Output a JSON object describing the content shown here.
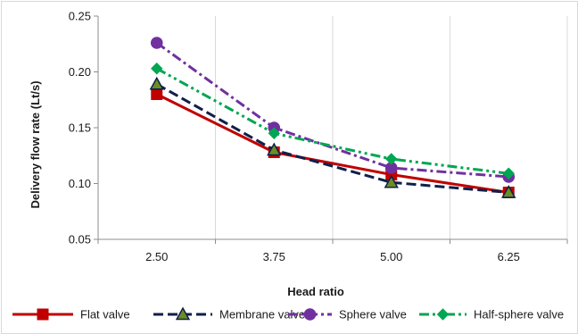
{
  "chart_data": {
    "type": "line",
    "title": "",
    "xlabel": "Head ratio",
    "ylabel": "Delivery flow rate (Lt/s)",
    "categories": [
      "2.50",
      "3.75",
      "5.00",
      "6.25"
    ],
    "ylim": [
      0.05,
      0.25
    ],
    "yticks": [
      "0.05",
      "0.10",
      "0.15",
      "0.20",
      "0.25"
    ],
    "grid": "vertical",
    "legend_position": "bottom",
    "series": [
      {
        "name": "Flat valve",
        "values": [
          0.18,
          0.128,
          0.108,
          0.092
        ],
        "color": "#c00000",
        "marker": "square",
        "dash": "solid"
      },
      {
        "name": "Membrane valve",
        "values": [
          0.189,
          0.13,
          0.101,
          0.092
        ],
        "color": "#0f1f4a",
        "marker": "triangle",
        "dash": "dashed"
      },
      {
        "name": "Sphere valve",
        "values": [
          0.226,
          0.15,
          0.114,
          0.106
        ],
        "color": "#7030a0",
        "marker": "circle",
        "dash": "dashdot"
      },
      {
        "name": "Half-sphere valve",
        "values": [
          0.203,
          0.145,
          0.122,
          0.109
        ],
        "color": "#00a651",
        "marker": "diamond",
        "dash": "dashdotdot"
      }
    ]
  }
}
